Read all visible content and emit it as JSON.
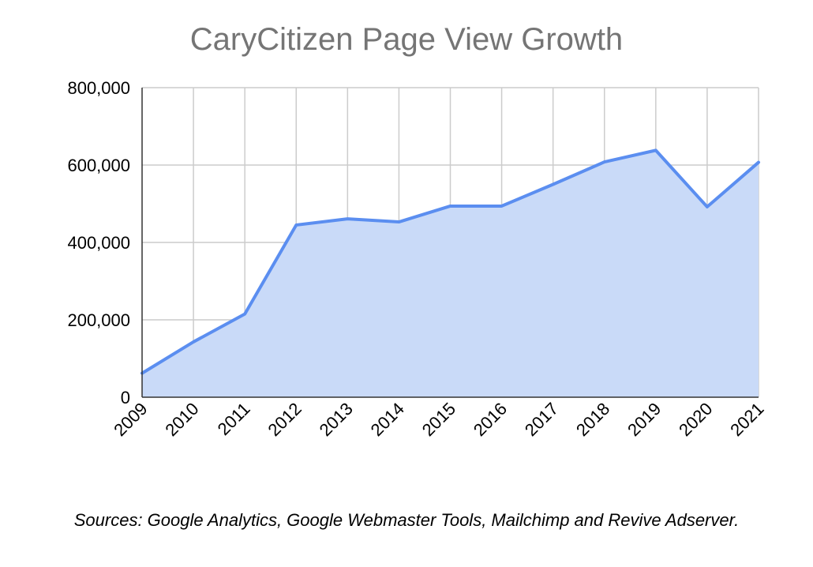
{
  "chart_data": {
    "type": "area",
    "title": "CaryCitizen Page View Growth",
    "xlabel": "",
    "ylabel": "",
    "categories": [
      "2009",
      "2010",
      "2011",
      "2012",
      "2013",
      "2014",
      "2015",
      "2016",
      "2017",
      "2018",
      "2019",
      "2020",
      "2021"
    ],
    "series": [
      {
        "values": [
          62000,
          143000,
          215000,
          445000,
          461000,
          453000,
          494000,
          494000,
          550000,
          608000,
          638000,
          492000,
          607000
        ]
      }
    ],
    "ylim": [
      0,
      800000
    ],
    "yticks": [
      "0",
      "200,000",
      "400,000",
      "600,000",
      "800,000"
    ],
    "grid": true,
    "legend": "none",
    "colors": {
      "line": "#5b8ef0",
      "fill": "#c9daf8",
      "grid": "#cccccc",
      "axis": "#333333"
    }
  },
  "caption": "Sources: Google Analytics, Google Webmaster Tools, Mailchimp and Revive Adserver."
}
